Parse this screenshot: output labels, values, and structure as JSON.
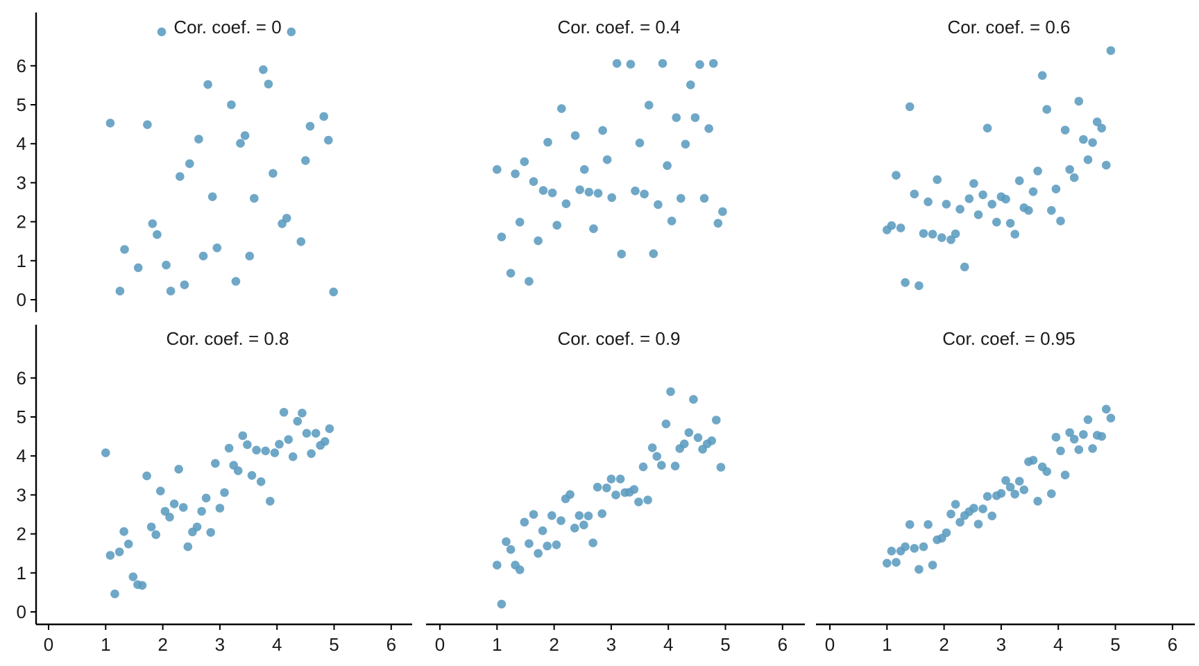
{
  "colors": {
    "point": "#5b9bbf",
    "axis": "#000000",
    "background": "#ffffff"
  },
  "chart_data": {
    "type": "scatter",
    "layout": "faceted 2x3 grid, shared axes",
    "xlim": [
      0,
      6
    ],
    "ylim": [
      -0.2,
      7
    ],
    "x_ticks": [
      0,
      1,
      2,
      3,
      4,
      5,
      6
    ],
    "y_ticks": [
      0,
      1,
      2,
      3,
      4,
      5,
      6
    ],
    "grid": false,
    "legend": "none",
    "panels": [
      {
        "title": "Cor. coef. = 0",
        "points": [
          [
            1.08,
            4.53
          ],
          [
            1.25,
            0.22
          ],
          [
            1.33,
            1.29
          ],
          [
            1.57,
            0.82
          ],
          [
            1.73,
            4.49
          ],
          [
            1.82,
            1.95
          ],
          [
            1.9,
            1.67
          ],
          [
            1.98,
            6.87
          ],
          [
            2.06,
            0.89
          ],
          [
            2.14,
            0.22
          ],
          [
            2.3,
            3.16
          ],
          [
            2.38,
            0.38
          ],
          [
            2.47,
            3.49
          ],
          [
            2.63,
            4.12
          ],
          [
            2.71,
            1.12
          ],
          [
            2.79,
            5.52
          ],
          [
            2.87,
            2.64
          ],
          [
            2.95,
            1.33
          ],
          [
            3.2,
            5.0
          ],
          [
            3.28,
            0.47
          ],
          [
            3.36,
            4.01
          ],
          [
            3.44,
            4.21
          ],
          [
            3.52,
            1.12
          ],
          [
            3.6,
            2.6
          ],
          [
            3.76,
            5.9
          ],
          [
            3.85,
            5.53
          ],
          [
            3.93,
            3.24
          ],
          [
            4.09,
            1.95
          ],
          [
            4.17,
            2.09
          ],
          [
            4.25,
            6.87
          ],
          [
            4.42,
            1.49
          ],
          [
            4.5,
            3.57
          ],
          [
            4.58,
            4.45
          ],
          [
            4.82,
            4.7
          ],
          [
            4.9,
            4.09
          ],
          [
            4.99,
            0.2
          ]
        ]
      },
      {
        "title": "Cor. coef. = 0.4",
        "points": [
          [
            1.0,
            3.34
          ],
          [
            1.08,
            1.61
          ],
          [
            1.24,
            0.68
          ],
          [
            1.32,
            3.23
          ],
          [
            1.4,
            1.99
          ],
          [
            1.48,
            3.54
          ],
          [
            1.56,
            0.47
          ],
          [
            1.64,
            3.03
          ],
          [
            1.72,
            1.51
          ],
          [
            1.81,
            2.8
          ],
          [
            1.89,
            4.04
          ],
          [
            1.97,
            2.74
          ],
          [
            2.05,
            1.91
          ],
          [
            2.13,
            4.9
          ],
          [
            2.21,
            2.46
          ],
          [
            2.37,
            4.21
          ],
          [
            2.45,
            2.82
          ],
          [
            2.53,
            3.34
          ],
          [
            2.61,
            2.76
          ],
          [
            2.69,
            1.82
          ],
          [
            2.77,
            2.73
          ],
          [
            2.85,
            4.34
          ],
          [
            2.93,
            3.59
          ],
          [
            3.01,
            2.62
          ],
          [
            3.1,
            6.06
          ],
          [
            3.18,
            1.17
          ],
          [
            3.34,
            6.04
          ],
          [
            3.42,
            2.79
          ],
          [
            3.5,
            4.02
          ],
          [
            3.58,
            2.71
          ],
          [
            3.66,
            4.99
          ],
          [
            3.74,
            1.18
          ],
          [
            3.82,
            2.44
          ],
          [
            3.9,
            6.06
          ],
          [
            3.98,
            3.44
          ],
          [
            4.06,
            2.02
          ],
          [
            4.14,
            4.67
          ],
          [
            4.22,
            2.6
          ],
          [
            4.3,
            3.99
          ],
          [
            4.39,
            5.51
          ],
          [
            4.47,
            4.67
          ],
          [
            4.55,
            6.03
          ],
          [
            4.63,
            2.6
          ],
          [
            4.71,
            4.39
          ],
          [
            4.79,
            6.06
          ],
          [
            4.87,
            1.96
          ],
          [
            4.95,
            2.26
          ]
        ]
      },
      {
        "title": "Cor. coef. = 0.6",
        "points": [
          [
            1.0,
            1.79
          ],
          [
            1.08,
            1.9
          ],
          [
            1.16,
            3.19
          ],
          [
            1.24,
            1.84
          ],
          [
            1.32,
            0.44
          ],
          [
            1.4,
            4.95
          ],
          [
            1.48,
            2.71
          ],
          [
            1.56,
            0.36
          ],
          [
            1.64,
            1.7
          ],
          [
            1.72,
            2.51
          ],
          [
            1.8,
            1.68
          ],
          [
            1.88,
            3.08
          ],
          [
            1.96,
            1.59
          ],
          [
            2.04,
            2.45
          ],
          [
            2.12,
            1.54
          ],
          [
            2.2,
            1.69
          ],
          [
            2.28,
            2.32
          ],
          [
            2.36,
            0.84
          ],
          [
            2.44,
            2.59
          ],
          [
            2.52,
            2.98
          ],
          [
            2.6,
            2.18
          ],
          [
            2.68,
            2.69
          ],
          [
            2.76,
            4.4
          ],
          [
            2.84,
            2.45
          ],
          [
            2.92,
            1.99
          ],
          [
            3.0,
            2.64
          ],
          [
            3.08,
            2.58
          ],
          [
            3.16,
            1.96
          ],
          [
            3.24,
            1.68
          ],
          [
            3.32,
            3.05
          ],
          [
            3.4,
            2.36
          ],
          [
            3.48,
            2.29
          ],
          [
            3.56,
            2.77
          ],
          [
            3.64,
            3.3
          ],
          [
            3.72,
            5.75
          ],
          [
            3.8,
            4.88
          ],
          [
            3.88,
            2.29
          ],
          [
            3.96,
            2.84
          ],
          [
            4.04,
            2.02
          ],
          [
            4.12,
            4.35
          ],
          [
            4.2,
            3.34
          ],
          [
            4.28,
            3.13
          ],
          [
            4.36,
            5.09
          ],
          [
            4.44,
            4.11
          ],
          [
            4.52,
            3.59
          ],
          [
            4.6,
            4.03
          ],
          [
            4.68,
            4.56
          ],
          [
            4.76,
            4.4
          ],
          [
            4.84,
            3.45
          ],
          [
            4.92,
            6.39
          ]
        ]
      },
      {
        "title": "Cor. coef. = 0.8",
        "points": [
          [
            1.0,
            4.08
          ],
          [
            1.08,
            1.45
          ],
          [
            1.16,
            0.46
          ],
          [
            1.24,
            1.54
          ],
          [
            1.32,
            2.06
          ],
          [
            1.4,
            1.74
          ],
          [
            1.48,
            0.9
          ],
          [
            1.56,
            0.7
          ],
          [
            1.64,
            0.68
          ],
          [
            1.72,
            3.49
          ],
          [
            1.8,
            2.18
          ],
          [
            1.88,
            1.98
          ],
          [
            1.96,
            3.1
          ],
          [
            2.04,
            2.58
          ],
          [
            2.12,
            2.43
          ],
          [
            2.2,
            2.77
          ],
          [
            2.28,
            3.66
          ],
          [
            2.36,
            2.68
          ],
          [
            2.44,
            1.67
          ],
          [
            2.52,
            2.05
          ],
          [
            2.6,
            2.18
          ],
          [
            2.68,
            2.58
          ],
          [
            2.76,
            2.92
          ],
          [
            2.84,
            2.04
          ],
          [
            2.92,
            3.81
          ],
          [
            3.0,
            2.66
          ],
          [
            3.08,
            3.06
          ],
          [
            3.16,
            4.2
          ],
          [
            3.24,
            3.76
          ],
          [
            3.32,
            3.62
          ],
          [
            3.4,
            4.52
          ],
          [
            3.48,
            4.29
          ],
          [
            3.56,
            3.5
          ],
          [
            3.64,
            4.15
          ],
          [
            3.72,
            3.34
          ],
          [
            3.8,
            4.13
          ],
          [
            3.88,
            2.84
          ],
          [
            3.96,
            4.08
          ],
          [
            4.04,
            4.3
          ],
          [
            4.12,
            5.12
          ],
          [
            4.2,
            4.42
          ],
          [
            4.28,
            3.98
          ],
          [
            4.36,
            4.89
          ],
          [
            4.44,
            5.1
          ],
          [
            4.52,
            4.58
          ],
          [
            4.6,
            4.06
          ],
          [
            4.68,
            4.58
          ],
          [
            4.76,
            4.27
          ],
          [
            4.84,
            4.37
          ],
          [
            4.92,
            4.7
          ]
        ]
      },
      {
        "title": "Cor. coef. = 0.9",
        "points": [
          [
            1.0,
            1.2
          ],
          [
            1.08,
            0.2
          ],
          [
            1.16,
            1.8
          ],
          [
            1.24,
            1.6
          ],
          [
            1.32,
            1.2
          ],
          [
            1.4,
            1.08
          ],
          [
            1.48,
            2.3
          ],
          [
            1.56,
            1.75
          ],
          [
            1.64,
            2.5
          ],
          [
            1.72,
            1.5
          ],
          [
            1.8,
            2.08
          ],
          [
            1.88,
            1.69
          ],
          [
            1.96,
            2.47
          ],
          [
            2.04,
            1.72
          ],
          [
            2.12,
            2.34
          ],
          [
            2.2,
            2.9
          ],
          [
            2.28,
            3.01
          ],
          [
            2.36,
            2.15
          ],
          [
            2.44,
            2.47
          ],
          [
            2.52,
            2.23
          ],
          [
            2.6,
            2.46
          ],
          [
            2.68,
            1.77
          ],
          [
            2.76,
            3.2
          ],
          [
            2.84,
            2.52
          ],
          [
            2.92,
            3.18
          ],
          [
            3.0,
            3.41
          ],
          [
            3.08,
            3.0
          ],
          [
            3.16,
            3.41
          ],
          [
            3.24,
            3.06
          ],
          [
            3.32,
            3.07
          ],
          [
            3.4,
            3.14
          ],
          [
            3.48,
            2.82
          ],
          [
            3.56,
            3.72
          ],
          [
            3.64,
            2.87
          ],
          [
            3.72,
            4.21
          ],
          [
            3.8,
            3.99
          ],
          [
            3.88,
            3.76
          ],
          [
            3.96,
            4.82
          ],
          [
            4.04,
            5.65
          ],
          [
            4.12,
            3.74
          ],
          [
            4.2,
            4.19
          ],
          [
            4.28,
            4.31
          ],
          [
            4.36,
            4.6
          ],
          [
            4.44,
            5.45
          ],
          [
            4.52,
            4.47
          ],
          [
            4.6,
            4.17
          ],
          [
            4.68,
            4.31
          ],
          [
            4.76,
            4.39
          ],
          [
            4.84,
            4.92
          ],
          [
            4.92,
            3.71
          ]
        ]
      },
      {
        "title": "Cor. coef. = 0.95",
        "points": [
          [
            1.0,
            1.25
          ],
          [
            1.08,
            1.56
          ],
          [
            1.16,
            1.27
          ],
          [
            1.24,
            1.56
          ],
          [
            1.32,
            1.67
          ],
          [
            1.4,
            2.24
          ],
          [
            1.48,
            1.63
          ],
          [
            1.56,
            1.09
          ],
          [
            1.64,
            1.67
          ],
          [
            1.72,
            2.24
          ],
          [
            1.8,
            1.2
          ],
          [
            1.88,
            1.85
          ],
          [
            1.96,
            1.89
          ],
          [
            2.04,
            2.03
          ],
          [
            2.12,
            2.51
          ],
          [
            2.2,
            2.76
          ],
          [
            2.28,
            2.3
          ],
          [
            2.36,
            2.47
          ],
          [
            2.44,
            2.57
          ],
          [
            2.52,
            2.66
          ],
          [
            2.6,
            2.25
          ],
          [
            2.68,
            2.64
          ],
          [
            2.76,
            2.96
          ],
          [
            2.84,
            2.46
          ],
          [
            2.92,
            2.98
          ],
          [
            3.0,
            3.04
          ],
          [
            3.08,
            3.37
          ],
          [
            3.16,
            3.2
          ],
          [
            3.24,
            3.02
          ],
          [
            3.32,
            3.35
          ],
          [
            3.4,
            3.13
          ],
          [
            3.48,
            3.85
          ],
          [
            3.56,
            3.89
          ],
          [
            3.64,
            2.84
          ],
          [
            3.72,
            3.72
          ],
          [
            3.8,
            3.6
          ],
          [
            3.88,
            3.03
          ],
          [
            3.96,
            4.48
          ],
          [
            4.04,
            4.13
          ],
          [
            4.12,
            3.51
          ],
          [
            4.2,
            4.6
          ],
          [
            4.28,
            4.43
          ],
          [
            4.36,
            4.16
          ],
          [
            4.44,
            4.55
          ],
          [
            4.52,
            4.93
          ],
          [
            4.6,
            4.19
          ],
          [
            4.68,
            4.53
          ],
          [
            4.76,
            4.5
          ],
          [
            4.84,
            5.2
          ],
          [
            4.92,
            4.97
          ]
        ]
      }
    ]
  }
}
